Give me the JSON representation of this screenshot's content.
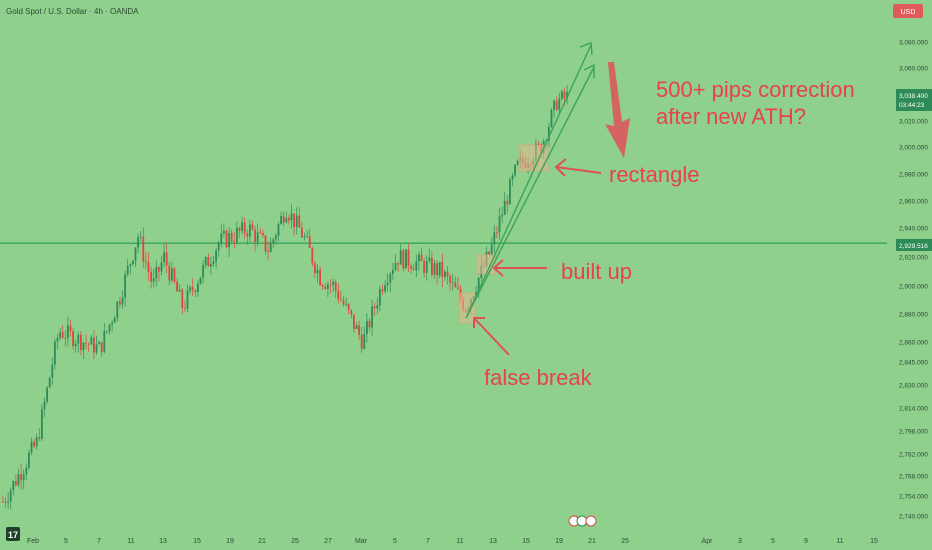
{
  "header": {
    "title": "Gold Spot / U.S. Dollar · 4h · OANDA",
    "currency": "USD"
  },
  "colors": {
    "background": "#8fd08c",
    "up_candle": "#2e8b57",
    "down_candle": "#e0443e",
    "level_line": "#3aa35b",
    "annotation_text": "#e8424a",
    "annotation_arrow": "#e0505a",
    "trend_line": "#3aa35b",
    "box_fill": "#e9b78f",
    "current_price_badge": "#2e8b57",
    "level_badge": "#2e8b57"
  },
  "price_axis": {
    "ticks": [
      "3,080.000",
      "3,060.000",
      "3,020.000",
      "3,000.000",
      "2,980.000",
      "2,960.000",
      "2,940.000",
      "2,920.000",
      "2,900.000",
      "2,880.000",
      "2,860.000",
      "2,845.000",
      "2,830.000",
      "2,814.000",
      "2,798.000",
      "2,782.000",
      "2,768.000",
      "2,754.000",
      "2,740.000"
    ],
    "current_price": "3,038.400",
    "countdown": "03:44:23",
    "level_label": "2,929.516"
  },
  "time_axis": {
    "labels": [
      "Feb",
      "5",
      "7",
      "11",
      "13",
      "15",
      "19",
      "21",
      "25",
      "27",
      "Mar",
      "5",
      "7",
      "11",
      "13",
      "15",
      "19",
      "21",
      "25",
      "Apr",
      "3",
      "5",
      "9",
      "11",
      "15"
    ]
  },
  "annotations": {
    "correction": [
      "500+ pips correction",
      "after new ATH?"
    ],
    "rectangle": "rectangle",
    "built_up": "built up",
    "false_break": "false break"
  },
  "chart_data": {
    "type": "candlestick",
    "title": "Gold Spot / U.S. Dollar · 4h · OANDA",
    "xlabel": "",
    "ylabel": "",
    "y_ticks": [
      3080,
      3060,
      3020,
      3000,
      2980,
      2960,
      2940,
      2920,
      2900,
      2880,
      2860,
      2845,
      2830,
      2814,
      2798,
      2782,
      2768,
      2754,
      2740
    ],
    "horizontal_levels": [
      2929.516
    ],
    "current_price": 3038.4,
    "x_tick_labels": [
      "Feb",
      "5",
      "7",
      "11",
      "13",
      "15",
      "19",
      "21",
      "25",
      "27",
      "Mar",
      "5",
      "7",
      "11",
      "13",
      "15",
      "19",
      "21",
      "25",
      "Apr",
      "3",
      "5",
      "9",
      "11",
      "15"
    ],
    "close_path": [
      {
        "date": "Feb 3",
        "close": 2750
      },
      {
        "date": "Feb 5",
        "close": 2790
      },
      {
        "date": "Feb 6",
        "close": 2868
      },
      {
        "date": "Feb 7",
        "close": 2855
      },
      {
        "date": "Feb 10",
        "close": 2890
      },
      {
        "date": "Feb 11",
        "close": 2935
      },
      {
        "date": "Feb 12",
        "close": 2900
      },
      {
        "date": "Feb 13",
        "close": 2920
      },
      {
        "date": "Feb 14",
        "close": 2885
      },
      {
        "date": "Feb 17",
        "close": 2905
      },
      {
        "date": "Feb 18",
        "close": 2930
      },
      {
        "date": "Feb 20",
        "close": 2940
      },
      {
        "date": "Feb 21",
        "close": 2925
      },
      {
        "date": "Feb 24",
        "close": 2955
      },
      {
        "date": "Feb 25",
        "close": 2935
      },
      {
        "date": "Feb 26",
        "close": 2905
      },
      {
        "date": "Feb 27",
        "close": 2900
      },
      {
        "date": "Feb 28",
        "close": 2860
      },
      {
        "date": "Mar 3",
        "close": 2905
      },
      {
        "date": "Mar 4",
        "close": 2920
      },
      {
        "date": "Mar 6",
        "close": 2915
      },
      {
        "date": "Mar 7",
        "close": 2910
      },
      {
        "date": "Mar 10",
        "close": 2895
      },
      {
        "date": "Mar 11",
        "close": 2885
      },
      {
        "date": "Mar 12",
        "close": 2925
      },
      {
        "date": "Mar 13",
        "close": 2960
      },
      {
        "date": "Mar 14",
        "close": 2985
      },
      {
        "date": "Mar 17",
        "close": 3000
      },
      {
        "date": "Mar 18",
        "close": 3035
      },
      {
        "date": "Mar 19",
        "close": 3038.4
      }
    ]
  }
}
